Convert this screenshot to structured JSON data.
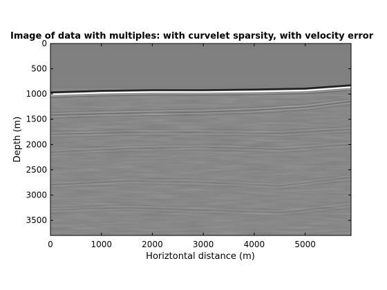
{
  "chart_data": {
    "type": "heatmap",
    "title": "Image of data with multiples: with curvelet sparsity, with velocity error",
    "xlabel": "Horiztontal distance (m)",
    "ylabel": "Depth (m)",
    "xlim": [
      0,
      5900
    ],
    "ylim": [
      0,
      3800
    ],
    "y_reversed": true,
    "x_ticks": [
      0,
      1000,
      2000,
      3000,
      4000,
      5000
    ],
    "y_ticks": [
      0,
      500,
      1000,
      1500,
      2000,
      2500,
      3000,
      3500
    ],
    "colormap": "gray",
    "background_color": "#808080",
    "reflectors": [
      {
        "kind": "water-bottom",
        "strength": 1.0,
        "points": [
          [
            0,
            1000
          ],
          [
            1000,
            970
          ],
          [
            2000,
            955
          ],
          [
            3000,
            955
          ],
          [
            4000,
            945
          ],
          [
            5000,
            925
          ],
          [
            5900,
            860
          ]
        ]
      },
      {
        "kind": "reflector",
        "strength": 0.45,
        "points": [
          [
            0,
            1420
          ],
          [
            1000,
            1390
          ],
          [
            2000,
            1370
          ],
          [
            3000,
            1355
          ],
          [
            4000,
            1320
          ],
          [
            5000,
            1260
          ],
          [
            5900,
            1150
          ]
        ]
      },
      {
        "kind": "reflector",
        "strength": 0.3,
        "points": [
          [
            0,
            1800
          ],
          [
            1500,
            1760
          ],
          [
            3000,
            1760
          ],
          [
            4500,
            1780
          ],
          [
            5900,
            1700
          ]
        ]
      },
      {
        "kind": "reflector",
        "strength": 0.25,
        "points": [
          [
            0,
            2150
          ],
          [
            1500,
            2080
          ],
          [
            3000,
            2050
          ],
          [
            4500,
            2100
          ],
          [
            5900,
            2000
          ]
        ]
      },
      {
        "kind": "reflector",
        "strength": 0.2,
        "points": [
          [
            0,
            2800
          ],
          [
            1500,
            2720
          ],
          [
            3000,
            2750
          ],
          [
            4500,
            2820
          ],
          [
            5900,
            2650
          ]
        ]
      },
      {
        "kind": "reflector",
        "strength": 0.2,
        "points": [
          [
            0,
            3300
          ],
          [
            1500,
            3250
          ],
          [
            3000,
            3300
          ],
          [
            4500,
            3350
          ],
          [
            5900,
            3200
          ]
        ]
      }
    ]
  }
}
